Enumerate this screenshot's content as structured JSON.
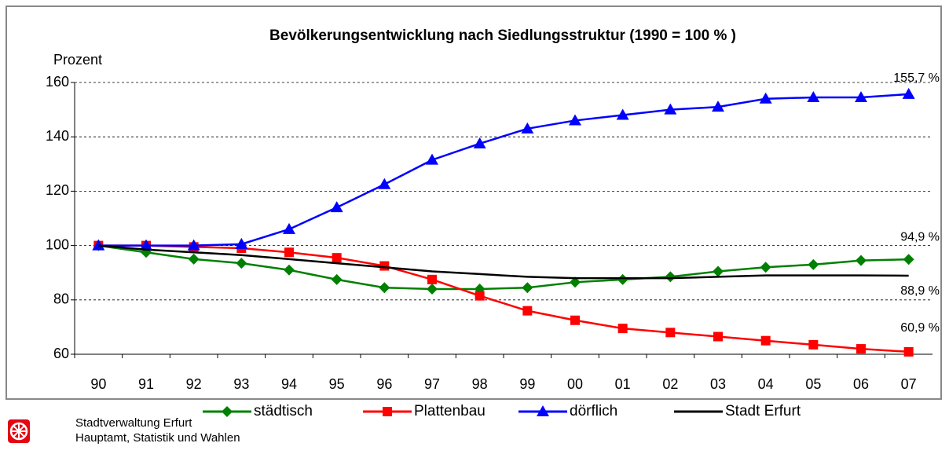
{
  "chart_data": {
    "type": "line",
    "title": "Bevölkerungsentwicklung nach Siedlungsstruktur (1990 = 100 % )",
    "y_label": "Prozent",
    "categories": [
      "90",
      "91",
      "92",
      "93",
      "94",
      "95",
      "96",
      "97",
      "98",
      "99",
      "00",
      "01",
      "02",
      "03",
      "04",
      "05",
      "06",
      "07"
    ],
    "ylim": [
      60,
      160
    ],
    "yticks": [
      60,
      80,
      100,
      120,
      140,
      160
    ],
    "grid": true,
    "legend": "bottom",
    "series": [
      {
        "name": "städtisch",
        "color": "#008000",
        "marker": "diamond",
        "values": [
          100,
          97.5,
          95,
          93.5,
          91,
          87.5,
          84.5,
          84,
          84,
          84.5,
          86.5,
          87.5,
          88.5,
          90.5,
          92,
          93,
          94.5,
          94.9
        ],
        "value_labels": [
          null,
          null,
          null,
          null,
          null,
          null,
          null,
          null,
          null,
          null,
          null,
          null,
          null,
          null,
          null,
          null,
          null,
          "94,9 %"
        ]
      },
      {
        "name": "Plattenbau",
        "color": "#ff0000",
        "marker": "square",
        "values": [
          100,
          100,
          99.5,
          99,
          97.5,
          95.5,
          92.5,
          87.5,
          81.5,
          76,
          72.5,
          69.5,
          68,
          66.5,
          65,
          63.5,
          62,
          60.9
        ],
        "value_labels": [
          null,
          null,
          null,
          null,
          null,
          null,
          null,
          null,
          null,
          null,
          null,
          null,
          null,
          null,
          null,
          null,
          null,
          "60,9 %"
        ]
      },
      {
        "name": "dörflich",
        "color": "#0000ff",
        "marker": "triangle",
        "values": [
          100,
          100,
          100,
          100.5,
          106,
          114,
          122.5,
          131.5,
          137.5,
          143,
          146,
          148,
          150,
          151,
          154,
          154.5,
          154.5,
          155.7
        ],
        "value_labels": [
          null,
          null,
          null,
          null,
          null,
          null,
          null,
          null,
          null,
          null,
          null,
          null,
          null,
          null,
          null,
          null,
          null,
          "155,7 %"
        ]
      },
      {
        "name": "Stadt Erfurt",
        "color": "#000000",
        "marker": "none",
        "values": [
          100,
          98.5,
          97.5,
          96.5,
          95,
          93.5,
          92,
          90.5,
          89.5,
          88.5,
          88,
          88,
          88,
          88.5,
          89,
          89,
          89,
          88.9
        ],
        "value_labels": [
          null,
          null,
          null,
          null,
          null,
          null,
          null,
          null,
          null,
          null,
          null,
          null,
          null,
          null,
          null,
          null,
          null,
          "88,9 %"
        ]
      }
    ]
  },
  "footer": {
    "line1": "Stadtverwaltung Erfurt",
    "line2": "Hauptamt, Statistik und Wahlen"
  }
}
